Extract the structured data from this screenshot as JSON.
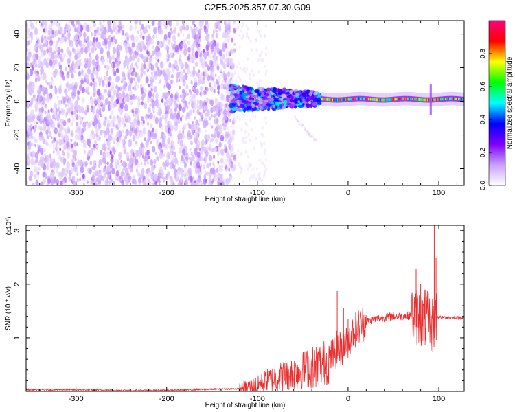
{
  "title": "C2E5.2025.357.07.30.G09",
  "chart_data": [
    {
      "type": "heatmap",
      "xlabel": "Height of straight line (km)",
      "ylabel": "Frequency (Hz)",
      "xlim": [
        -355,
        128
      ],
      "ylim": [
        -50,
        48
      ],
      "xticks": [
        -300,
        -200,
        -100,
        0,
        100
      ],
      "yticks": [
        -40,
        -20,
        0,
        20,
        40
      ],
      "colorbar": {
        "label": "Normalized spectral amplitude",
        "range": [
          0,
          1
        ],
        "ticks": [
          0.0,
          0.2,
          0.4,
          0.6,
          0.8
        ],
        "tick_labels": [
          "0.0",
          "0.2",
          "0.4",
          "0.6",
          "0.8"
        ],
        "colors": [
          "#ffffff",
          "#c8a0ff",
          "#7f00ff",
          "#0000ff",
          "#00ffff",
          "#00ff00",
          "#ffff00",
          "#ff0000",
          "#ff0080"
        ]
      },
      "regions": [
        {
          "x_range": [
            -355,
            -125
          ],
          "freq_range": [
            -50,
            48
          ],
          "amplitude_range": [
            0.05,
            0.15
          ],
          "description": "noise"
        },
        {
          "x_range": [
            -130,
            -30
          ],
          "freq_range": [
            -5,
            8
          ],
          "amplitude_range": [
            0.3,
            0.55
          ]
        },
        {
          "x_range": [
            -30,
            128
          ],
          "freq_range": [
            0,
            3
          ],
          "amplitude_range": [
            0.4,
            0.95
          ]
        }
      ]
    },
    {
      "type": "line",
      "xlabel": "Height of straight line (km)",
      "ylabel": "SNR (10 * v/v)",
      "multiplier": "(x10^4)",
      "multiplier_base": "(x10",
      "multiplier_exp": "4",
      "multiplier_close": ")",
      "xlim": [
        -355,
        128
      ],
      "ylim": [
        0,
        3.1
      ],
      "xticks": [
        -300,
        -200,
        -100,
        0,
        100
      ],
      "yticks": [
        1,
        2,
        3
      ],
      "series": [
        {
          "name": "SNR",
          "color": "#e83030",
          "x": [
            -355,
            -300,
            -250,
            -200,
            -150,
            -120,
            -100,
            -90,
            -80,
            -70,
            -60,
            -50,
            -40,
            -30,
            -20,
            -12,
            -10,
            -5,
            0,
            5,
            10,
            20,
            30,
            40,
            50,
            60,
            70,
            75,
            80,
            85,
            90,
            95,
            96,
            100,
            110,
            128
          ],
          "y": [
            0.03,
            0.03,
            0.02,
            0.02,
            0.04,
            0.05,
            0.1,
            0.2,
            0.25,
            0.3,
            0.35,
            0.4,
            0.45,
            0.5,
            0.6,
            0.8,
            0.75,
            0.85,
            0.95,
            1.1,
            1.2,
            1.3,
            1.35,
            1.38,
            1.4,
            1.4,
            1.42,
            1.4,
            1.38,
            1.35,
            1.3,
            1.2,
            1.4,
            1.38,
            1.38,
            1.37
          ]
        }
      ],
      "spikes": [
        {
          "x": -12,
          "y": 1.87
        },
        {
          "x": -5,
          "y": 1.55
        },
        {
          "x": 0,
          "y": 1.35
        },
        {
          "x": 75,
          "y": 2.28
        },
        {
          "x": 80,
          "y": 2.0
        },
        {
          "x": 85,
          "y": 1.9
        },
        {
          "x": 95,
          "y": 3.1
        },
        {
          "x": 97,
          "y": 2.5
        }
      ]
    }
  ]
}
